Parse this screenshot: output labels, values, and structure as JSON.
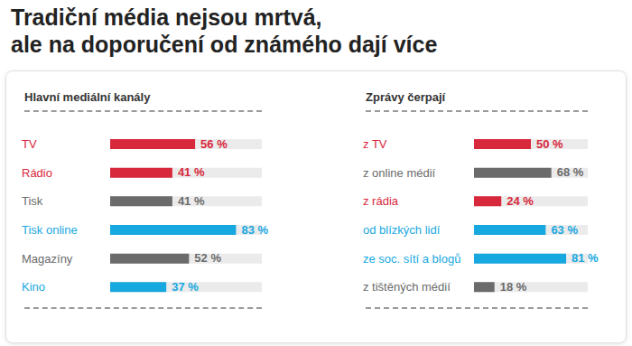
{
  "title": [
    "Tradiční média nejsou mrtvá,",
    "ale na doporučení od známého dají více"
  ],
  "chart_data": [
    {
      "type": "bar",
      "orientation": "horizontal",
      "title": "Hlavní mediální kanály",
      "categories": [
        "TV",
        "Rádio",
        "Tisk",
        "Tisk online",
        "Magazíny",
        "Kino"
      ],
      "values": [
        56,
        41,
        41,
        83,
        52,
        37
      ],
      "value_labels": [
        "56 %",
        "41 %",
        "41 %",
        "83 %",
        "52 %",
        "37 %"
      ],
      "colors": [
        "#d8283c",
        "#d8283c",
        "#6b6b6b",
        "#18a8e0",
        "#6b6b6b",
        "#18a8e0"
      ],
      "xlim": [
        0,
        100
      ],
      "data_labels": true,
      "tick_labels": false
    },
    {
      "type": "bar",
      "orientation": "horizontal",
      "title": "Zprávy čerpají",
      "categories": [
        "z TV",
        "z online médií",
        "z rádia",
        "od blízkých lidí",
        "ze soc. sítí a blogů",
        "z tištěných médií"
      ],
      "values": [
        50,
        68,
        24,
        63,
        81,
        18
      ],
      "value_labels": [
        "50 %",
        "68 %",
        "24 %",
        "63 %",
        "81 %",
        "18 %"
      ],
      "colors": [
        "#d8283c",
        "#6b6b6b",
        "#d8283c",
        "#18a8e0",
        "#18a8e0",
        "#6b6b6b"
      ],
      "xlim": [
        0,
        100
      ],
      "data_labels": true,
      "tick_labels": false
    }
  ]
}
